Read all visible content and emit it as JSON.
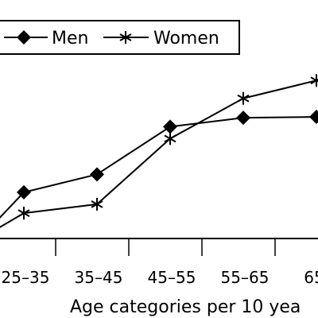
{
  "chart_data": {
    "type": "line",
    "categories": [
      "25–35",
      "35–45",
      "45–55",
      "55–65",
      "65–"
    ],
    "series": [
      {
        "name": "Men",
        "values": [
          1.55,
          2.15,
          3.75,
          4.05,
          4.08
        ],
        "y_at_left_edge": 0.65
      },
      {
        "name": "Women",
        "values": [
          0.85,
          1.15,
          3.35,
          4.7,
          5.3
        ],
        "y_at_left_edge": 0.35
      }
    ],
    "ylim": [
      0,
      8
    ],
    "xlabel": "Age categories per 10 yea",
    "grid": false,
    "legend": "top-left",
    "colors": {
      "line": "#000000",
      "background": "#ffffff"
    }
  }
}
